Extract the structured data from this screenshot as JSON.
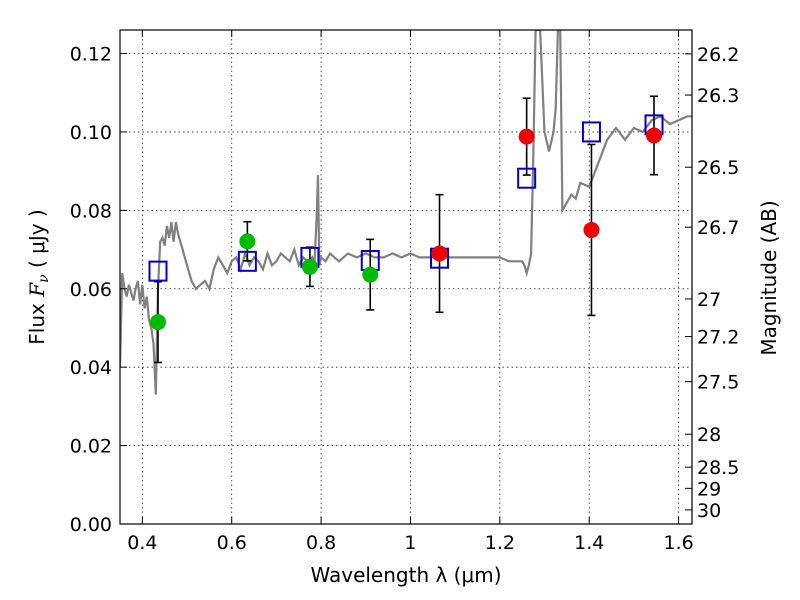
{
  "chart_data": {
    "type": "scatter",
    "xlabel_text": "Wavelength  λ (",
    "xlabel_unit": "μm)",
    "ylabel_text": "Flux",
    "ylabel_symbol": "F",
    "ylabel_symbol_sub": "ν",
    "ylabel_unit": " ( μJy )",
    "y2label": "Magnitude (AB)",
    "xlim": [
      0.35,
      1.63
    ],
    "ylim": [
      0.0,
      0.126
    ],
    "grid": true,
    "x_ticks": [
      0.4,
      0.6,
      0.8,
      1.0,
      1.2,
      1.4,
      1.6
    ],
    "x_tick_labels": [
      "0.4",
      "0.6",
      "0.8",
      "1",
      "1.2",
      "1.4",
      "1.6"
    ],
    "y_ticks": [
      0.0,
      0.02,
      0.04,
      0.06,
      0.08,
      0.1,
      0.12
    ],
    "y_tick_labels": [
      "0.00",
      "0.02",
      "0.04",
      "0.06",
      "0.08",
      "0.10",
      "0.12"
    ],
    "mag_ticks": [
      {
        "label": "26.2",
        "flux": 0.1199
      },
      {
        "label": "26.3",
        "flux": 0.1094
      },
      {
        "label": "26.5",
        "flux": 0.091
      },
      {
        "label": "26.7",
        "flux": 0.0757
      },
      {
        "label": "27",
        "flux": 0.0574
      },
      {
        "label": "27.2",
        "flux": 0.0478
      },
      {
        "label": "27.5",
        "flux": 0.0363
      },
      {
        "label": "28",
        "flux": 0.0229
      },
      {
        "label": "28.5",
        "flux": 0.0145
      },
      {
        "label": "29",
        "flux": 0.0091
      },
      {
        "label": "30",
        "flux": 0.0036
      }
    ],
    "series": [
      {
        "marker": "circle",
        "color": "#00bb00",
        "points": [
          {
            "x": 0.435,
            "y": 0.0515,
            "err": 0.0103
          },
          {
            "x": 0.635,
            "y": 0.0721,
            "err": 0.005
          },
          {
            "x": 0.775,
            "y": 0.0656,
            "err": 0.005
          },
          {
            "x": 0.91,
            "y": 0.0636,
            "err": 0.009
          }
        ]
      },
      {
        "marker": "circle",
        "color": "#ee0000",
        "points": [
          {
            "x": 1.065,
            "y": 0.069,
            "err": 0.015
          },
          {
            "x": 1.26,
            "y": 0.0988,
            "err": 0.0098
          },
          {
            "x": 1.405,
            "y": 0.075,
            "err": 0.0218
          },
          {
            "x": 1.545,
            "y": 0.0991,
            "err": 0.01
          }
        ]
      },
      {
        "marker": "square",
        "color": "#0000cc",
        "points": [
          {
            "x": 0.435,
            "y": 0.0645
          },
          {
            "x": 0.635,
            "y": 0.067
          },
          {
            "x": 0.775,
            "y": 0.068
          },
          {
            "x": 0.91,
            "y": 0.0672
          },
          {
            "x": 1.065,
            "y": 0.0678
          },
          {
            "x": 1.26,
            "y": 0.0882
          },
          {
            "x": 1.405,
            "y": 0.1
          },
          {
            "x": 1.545,
            "y": 0.1018
          }
        ]
      }
    ],
    "spectrum": {
      "color": "#808080",
      "x": [
        0.35,
        0.355,
        0.36,
        0.365,
        0.37,
        0.375,
        0.38,
        0.385,
        0.39,
        0.395,
        0.4,
        0.405,
        0.41,
        0.415,
        0.42,
        0.425,
        0.43,
        0.435,
        0.44,
        0.445,
        0.45,
        0.455,
        0.46,
        0.465,
        0.47,
        0.475,
        0.48,
        0.49,
        0.5,
        0.51,
        0.52,
        0.53,
        0.54,
        0.55,
        0.56,
        0.57,
        0.58,
        0.59,
        0.6,
        0.61,
        0.62,
        0.63,
        0.64,
        0.65,
        0.66,
        0.67,
        0.68,
        0.69,
        0.7,
        0.71,
        0.72,
        0.73,
        0.74,
        0.75,
        0.76,
        0.77,
        0.78,
        0.785,
        0.79,
        0.793,
        0.796,
        0.8,
        0.81,
        0.82,
        0.83,
        0.84,
        0.86,
        0.88,
        0.9,
        0.92,
        0.94,
        0.96,
        0.98,
        1.0,
        1.02,
        1.05,
        1.08,
        1.11,
        1.14,
        1.17,
        1.2,
        1.22,
        1.24,
        1.25,
        1.255,
        1.26,
        1.265,
        1.27,
        1.275,
        1.28,
        1.285,
        1.29,
        1.3,
        1.31,
        1.32,
        1.325,
        1.33,
        1.335,
        1.34,
        1.35,
        1.36,
        1.37,
        1.38,
        1.4,
        1.42,
        1.44,
        1.46,
        1.48,
        1.5,
        1.52,
        1.54,
        1.56,
        1.58,
        1.6,
        1.62,
        1.63
      ],
      "y": [
        0.04,
        0.064,
        0.06,
        0.058,
        0.061,
        0.059,
        0.057,
        0.06,
        0.062,
        0.056,
        0.061,
        0.055,
        0.058,
        0.052,
        0.05,
        0.046,
        0.033,
        0.06,
        0.072,
        0.073,
        0.071,
        0.076,
        0.073,
        0.077,
        0.072,
        0.077,
        0.074,
        0.07,
        0.066,
        0.062,
        0.06,
        0.061,
        0.062,
        0.06,
        0.065,
        0.068,
        0.066,
        0.064,
        0.067,
        0.068,
        0.065,
        0.069,
        0.066,
        0.068,
        0.067,
        0.065,
        0.069,
        0.066,
        0.067,
        0.069,
        0.068,
        0.067,
        0.07,
        0.066,
        0.068,
        0.067,
        0.068,
        0.066,
        0.078,
        0.089,
        0.066,
        0.068,
        0.067,
        0.069,
        0.068,
        0.067,
        0.069,
        0.068,
        0.069,
        0.068,
        0.068,
        0.069,
        0.068,
        0.069,
        0.068,
        0.068,
        0.068,
        0.068,
        0.068,
        0.068,
        0.068,
        0.067,
        0.067,
        0.067,
        0.066,
        0.064,
        0.066,
        0.069,
        0.095,
        0.126,
        0.126,
        0.126,
        0.1,
        0.095,
        0.1,
        0.106,
        0.126,
        0.126,
        0.08,
        0.082,
        0.084,
        0.083,
        0.087,
        0.086,
        0.092,
        0.098,
        0.101,
        0.098,
        0.101,
        0.1,
        0.103,
        0.104,
        0.102,
        0.103,
        0.104,
        0.104
      ]
    }
  }
}
